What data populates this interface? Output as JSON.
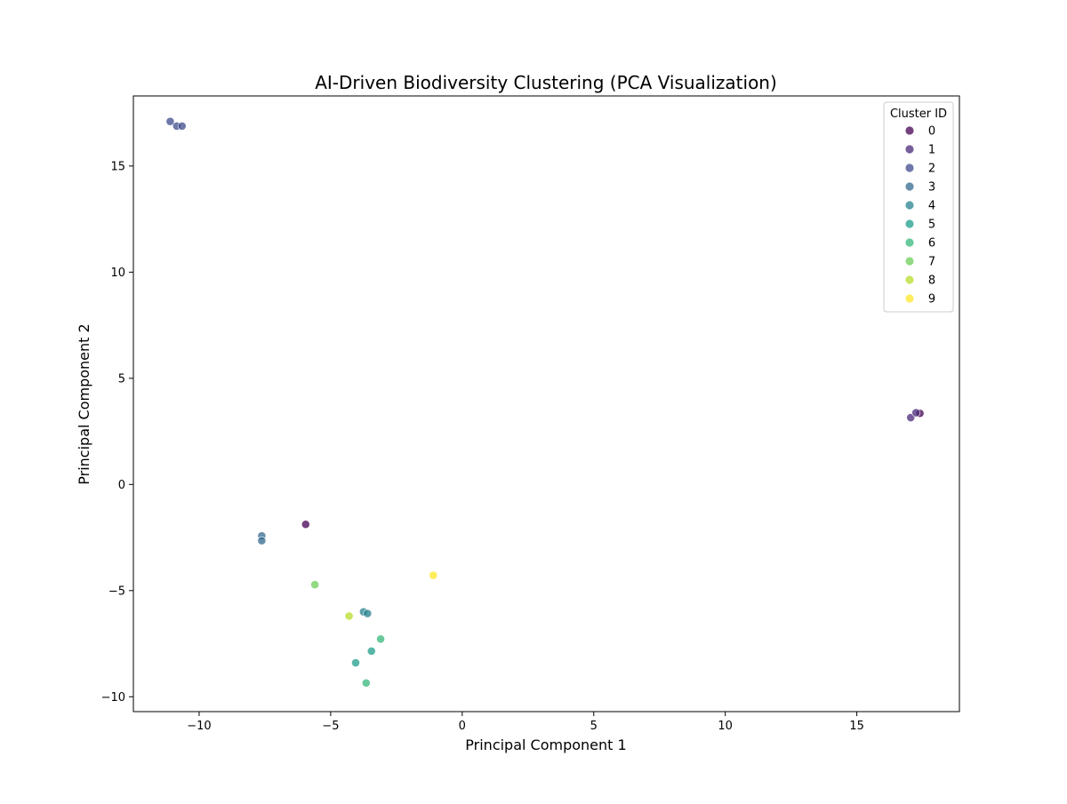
{
  "chart_data": {
    "type": "scatter",
    "title": "AI-Driven Biodiversity Clustering (PCA Visualization)",
    "xlabel": "Principal Component 1",
    "ylabel": "Principal Component 2",
    "xlim": [
      -12.5,
      18.9
    ],
    "ylim": [
      -10.7,
      18.3
    ],
    "x_ticks": [
      -10,
      -5,
      0,
      5,
      10,
      15
    ],
    "y_ticks": [
      -10,
      -5,
      0,
      5,
      10,
      15
    ],
    "grid": false,
    "legend": {
      "title": "Cluster ID",
      "placement": "top-right"
    },
    "series": [
      {
        "name": "0",
        "color": "#440154",
        "points": [
          [
            -5.95,
            -1.88
          ],
          [
            17.4,
            3.35
          ]
        ]
      },
      {
        "name": "1",
        "color": "#482878",
        "points": [
          [
            17.05,
            3.15
          ],
          [
            17.25,
            3.38
          ]
        ]
      },
      {
        "name": "2",
        "color": "#3e4989",
        "points": [
          [
            -11.1,
            17.1
          ],
          [
            -10.85,
            16.88
          ],
          [
            -10.65,
            16.88
          ]
        ]
      },
      {
        "name": "3",
        "color": "#31688e",
        "points": [
          [
            -7.62,
            -2.42
          ],
          [
            -7.62,
            -2.65
          ]
        ]
      },
      {
        "name": "4",
        "color": "#26828e",
        "points": [
          [
            -3.75,
            -6.0
          ],
          [
            -3.6,
            -6.08
          ]
        ]
      },
      {
        "name": "5",
        "color": "#1f9e89",
        "points": [
          [
            -4.05,
            -8.4
          ],
          [
            -3.45,
            -7.85
          ]
        ]
      },
      {
        "name": "6",
        "color": "#35b779",
        "points": [
          [
            -3.1,
            -7.28
          ],
          [
            -3.65,
            -9.35
          ]
        ]
      },
      {
        "name": "7",
        "color": "#6ece58",
        "points": [
          [
            -5.6,
            -4.72
          ]
        ]
      },
      {
        "name": "8",
        "color": "#b5de2b",
        "points": [
          [
            -4.3,
            -6.2
          ]
        ]
      },
      {
        "name": "9",
        "color": "#fde725",
        "points": [
          [
            -1.1,
            -4.28
          ]
        ]
      }
    ]
  }
}
